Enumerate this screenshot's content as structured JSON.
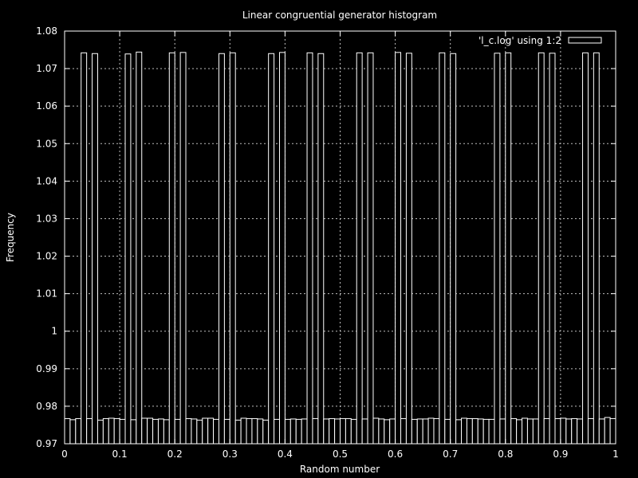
{
  "chart_data": {
    "type": "bar",
    "title": "Linear congruential generator histogram",
    "xlabel": "Random number",
    "ylabel": "Frequency",
    "xlim": [
      0,
      1
    ],
    "ylim": [
      0.97,
      1.08
    ],
    "grid": true,
    "legend": {
      "position": "top-right",
      "label": "'l_c.log' using 1:2"
    },
    "x_ticks": [
      {
        "value": 0,
        "label": "0"
      },
      {
        "value": 0.1,
        "label": "0.1"
      },
      {
        "value": 0.2,
        "label": "0.2"
      },
      {
        "value": 0.3,
        "label": "0.3"
      },
      {
        "value": 0.4,
        "label": "0.4"
      },
      {
        "value": 0.5,
        "label": "0.5"
      },
      {
        "value": 0.6,
        "label": "0.6"
      },
      {
        "value": 0.7,
        "label": "0.7"
      },
      {
        "value": 0.8,
        "label": "0.8"
      },
      {
        "value": 0.9,
        "label": "0.9"
      },
      {
        "value": 1,
        "label": "1"
      }
    ],
    "y_ticks": [
      {
        "value": 0.97,
        "label": "0.97"
      },
      {
        "value": 0.98,
        "label": "0.98"
      },
      {
        "value": 0.99,
        "label": "0.99"
      },
      {
        "value": 1.0,
        "label": "1"
      },
      {
        "value": 1.01,
        "label": "1.01"
      },
      {
        "value": 1.02,
        "label": "1.02"
      },
      {
        "value": 1.03,
        "label": "1.03"
      },
      {
        "value": 1.04,
        "label": "1.04"
      },
      {
        "value": 1.05,
        "label": "1.05"
      },
      {
        "value": 1.06,
        "label": "1.06"
      },
      {
        "value": 1.07,
        "label": "1.07"
      },
      {
        "value": 1.08,
        "label": "1.08"
      }
    ],
    "bin_width": 0.01,
    "series": [
      {
        "x": [
          0.005,
          0.015,
          0.025,
          0.035,
          0.045,
          0.055,
          0.065,
          0.075,
          0.085,
          0.095,
          0.105,
          0.115,
          0.125,
          0.135,
          0.145,
          0.155,
          0.165,
          0.175,
          0.185,
          0.195,
          0.205,
          0.215,
          0.225,
          0.235,
          0.245,
          0.255,
          0.265,
          0.275,
          0.285,
          0.295,
          0.305,
          0.315,
          0.325,
          0.335,
          0.345,
          0.355,
          0.365,
          0.375,
          0.385,
          0.395,
          0.405,
          0.415,
          0.425,
          0.435,
          0.445,
          0.455,
          0.465,
          0.475,
          0.485,
          0.495,
          0.505,
          0.515,
          0.525,
          0.535,
          0.545,
          0.555,
          0.565,
          0.575,
          0.585,
          0.595,
          0.605,
          0.615,
          0.625,
          0.635,
          0.645,
          0.655,
          0.665,
          0.675,
          0.685,
          0.695,
          0.705,
          0.715,
          0.725,
          0.735,
          0.745,
          0.755,
          0.765,
          0.775,
          0.785,
          0.795,
          0.805,
          0.815,
          0.825,
          0.835,
          0.845,
          0.855,
          0.865,
          0.875,
          0.885,
          0.895,
          0.905,
          0.915,
          0.925,
          0.935,
          0.945,
          0.955,
          0.965,
          0.975,
          0.985,
          0.995
        ],
        "values": [
          0.9767,
          0.9764,
          0.9767,
          1.0742,
          0.9767,
          1.074,
          0.9763,
          0.9767,
          0.9768,
          0.9767,
          0.9765,
          1.0739,
          0.9764,
          1.0744,
          0.9768,
          0.9768,
          0.9765,
          0.9766,
          0.9764,
          1.0742,
          0.9765,
          1.0743,
          0.9767,
          0.9766,
          0.9763,
          0.9768,
          0.9768,
          0.9765,
          1.074,
          0.9765,
          1.0742,
          0.9763,
          0.9768,
          0.9767,
          0.9767,
          0.9766,
          0.9763,
          1.074,
          0.9765,
          1.0743,
          0.9765,
          0.9766,
          0.9765,
          0.9766,
          1.0742,
          0.9767,
          1.074,
          0.9766,
          0.9767,
          0.9766,
          0.9767,
          0.9767,
          0.9765,
          1.0742,
          0.9766,
          1.0742,
          0.9768,
          0.9766,
          0.9764,
          0.9766,
          1.0743,
          0.9767,
          1.0741,
          0.9765,
          0.9766,
          0.9766,
          0.9768,
          0.9767,
          1.0742,
          0.9765,
          1.074,
          0.9764,
          0.9768,
          0.9767,
          0.9767,
          0.9766,
          0.9765,
          0.9765,
          1.0741,
          0.9766,
          1.0742,
          0.9767,
          0.9764,
          0.9768,
          0.9766,
          0.9766,
          1.0742,
          0.9767,
          1.0741,
          0.9767,
          0.9768,
          0.9766,
          0.9767,
          0.9766,
          1.0742,
          0.9767,
          1.0742,
          0.9766,
          0.977,
          0.9767
        ]
      }
    ]
  }
}
